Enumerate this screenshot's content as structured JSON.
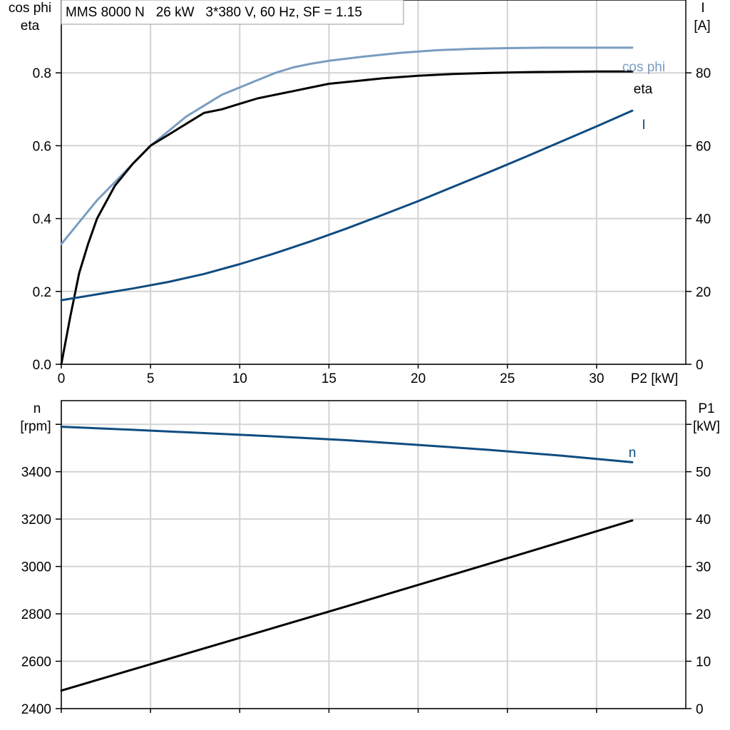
{
  "chart_data": [
    {
      "type": "line",
      "title": "MMS 8000 N   26 kW   3*380 V, 60 Hz, SF = 1.15",
      "xlabel": "P2 [kW]",
      "ylabel_left_line1": "cos phi",
      "ylabel_left_line2": "eta",
      "ylabel_right_line1": "I",
      "ylabel_right_line2": "[A]",
      "xlim": [
        0,
        35
      ],
      "ylim_left": [
        0,
        1.0
      ],
      "ylim_right": [
        0,
        100
      ],
      "grid": true,
      "xticks": [
        0,
        5,
        10,
        15,
        20,
        25,
        30
      ],
      "yticks_left": [
        0.0,
        0.2,
        0.4,
        0.6,
        0.8
      ],
      "yticks_right": [
        0,
        20,
        40,
        60,
        80
      ],
      "series": [
        {
          "name": "cos phi",
          "axis": "left",
          "color": "#7a9cc0",
          "points": [
            [
              0,
              0.33
            ],
            [
              1,
              0.39
            ],
            [
              2,
              0.45
            ],
            [
              3,
              0.5
            ],
            [
              4,
              0.55
            ],
            [
              5,
              0.6
            ],
            [
              6,
              0.64
            ],
            [
              7,
              0.68
            ],
            [
              8,
              0.71
            ],
            [
              9,
              0.74
            ],
            [
              10,
              0.76
            ],
            [
              11,
              0.78
            ],
            [
              12,
              0.8
            ],
            [
              13,
              0.815
            ],
            [
              14,
              0.825
            ],
            [
              15,
              0.833
            ],
            [
              17,
              0.845
            ],
            [
              19,
              0.855
            ],
            [
              21,
              0.862
            ],
            [
              23,
              0.866
            ],
            [
              25,
              0.868
            ],
            [
              27,
              0.869
            ],
            [
              29,
              0.869
            ],
            [
              32,
              0.869
            ]
          ]
        },
        {
          "name": "eta",
          "axis": "left",
          "color": "#000000",
          "points": [
            [
              0,
              0.0
            ],
            [
              0.5,
              0.13
            ],
            [
              1,
              0.25
            ],
            [
              1.5,
              0.33
            ],
            [
              2,
              0.4
            ],
            [
              3,
              0.49
            ],
            [
              4,
              0.55
            ],
            [
              5,
              0.6
            ],
            [
              6,
              0.63
            ],
            [
              7,
              0.66
            ],
            [
              8,
              0.69
            ],
            [
              9,
              0.7
            ],
            [
              10,
              0.715
            ],
            [
              11,
              0.73
            ],
            [
              12,
              0.74
            ],
            [
              13,
              0.75
            ],
            [
              14,
              0.76
            ],
            [
              15,
              0.77
            ],
            [
              16,
              0.775
            ],
            [
              18,
              0.785
            ],
            [
              20,
              0.792
            ],
            [
              22,
              0.797
            ],
            [
              24,
              0.8
            ],
            [
              26,
              0.802
            ],
            [
              28,
              0.803
            ],
            [
              30,
              0.804
            ],
            [
              32,
              0.804
            ]
          ]
        },
        {
          "name": "I",
          "axis": "right",
          "color": "#0f4c81",
          "points": [
            [
              0,
              17.6
            ],
            [
              2,
              19.2
            ],
            [
              4,
              20.8
            ],
            [
              6,
              22.6
            ],
            [
              8,
              24.8
            ],
            [
              10,
              27.5
            ],
            [
              12,
              30.5
            ],
            [
              14,
              33.8
            ],
            [
              16,
              37.3
            ],
            [
              18,
              41.0
            ],
            [
              20,
              44.8
            ],
            [
              22,
              48.8
            ],
            [
              24,
              52.8
            ],
            [
              26,
              56.9
            ],
            [
              28,
              61.1
            ],
            [
              30,
              65.3
            ],
            [
              32,
              69.6
            ]
          ]
        }
      ]
    },
    {
      "type": "line",
      "xlabel": "",
      "ylabel_left_line1": "n",
      "ylabel_left_line2": "[rpm]",
      "ylabel_right_line1": "P1",
      "ylabel_right_line2": "[kW]",
      "xlim": [
        0,
        35
      ],
      "ylim_left": [
        2400,
        3700
      ],
      "ylim_right": [
        0,
        65
      ],
      "grid": true,
      "yticks_left": [
        2400,
        2600,
        2800,
        3000,
        3200,
        3400
      ],
      "yticks_right": [
        0,
        10,
        20,
        30,
        40,
        50
      ],
      "series": [
        {
          "name": "n",
          "axis": "left",
          "color": "#0f4c81",
          "points": [
            [
              0,
              3590
            ],
            [
              4,
              3577
            ],
            [
              8,
              3563
            ],
            [
              12,
              3549
            ],
            [
              16,
              3533
            ],
            [
              20,
              3513
            ],
            [
              24,
              3492
            ],
            [
              28,
              3468
            ],
            [
              32,
              3440
            ]
          ]
        },
        {
          "name": "",
          "axis": "right",
          "color": "#000000",
          "points": [
            [
              0,
              3.8
            ],
            [
              8,
              12.7
            ],
            [
              16,
              21.6
            ],
            [
              24,
              30.6
            ],
            [
              32,
              39.7
            ]
          ]
        }
      ]
    }
  ]
}
